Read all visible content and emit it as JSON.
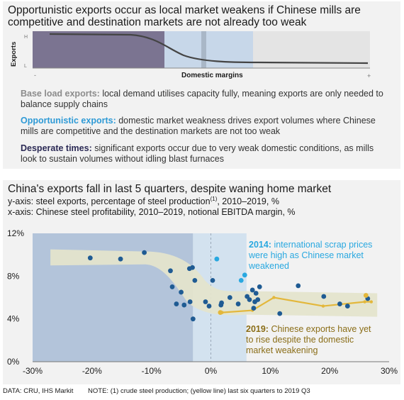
{
  "top_panel": {
    "title_line1": "Opportunistic exports occur as local market weakens if Chinese mills are",
    "title_line2": "competitive and destination markets are not already too weak",
    "schematic": {
      "y_axis_label": "Exports",
      "y_high": "H",
      "y_low": "L",
      "x_axis_label": "Domestic margins",
      "x_minus": "-",
      "x_plus": "+",
      "colors": {
        "desperate": "#7b7491",
        "opportunistic": "#c7d7e9",
        "base": "#e4e4e4",
        "line": "#444444"
      }
    },
    "definitions": [
      {
        "term": "Base load exports:",
        "text": " local demand utilises capacity fully, meaning exports are only needed to balance supply chains",
        "color": "#8c8c8c"
      },
      {
        "term": "Opportunistic exports:",
        "text": " domestic market weakness drives export volumes where Chinese mills are competitive and the destination markets are not too weak",
        "color": "#2e9ad6"
      },
      {
        "term": "Desperate times:",
        "text": " significant exports occur due to very weak domestic conditions, as mills look to sustain volumes without idling blast furnaces",
        "color": "#2b2a55"
      }
    ]
  },
  "bottom_panel": {
    "title": "China's exports fall in last 5 quarters, despite waning home market",
    "y_axis_desc": "y-axis: steel exports, percentage of steel production",
    "y_axis_sup": "(1)",
    "y_axis_desc_tail": ", 2010–2019, %",
    "x_axis_desc": "x-axis: Chinese steel profitability, 2010–2019, notional EBITDA margin, %"
  },
  "chart_data": {
    "type": "scatter",
    "xlim": [
      -30,
      30
    ],
    "ylim": [
      0,
      12
    ],
    "x_ticks": [
      "-30%",
      "-20%",
      "-10%",
      "0%",
      "10%",
      "20%",
      "30%"
    ],
    "y_ticks": [
      "0%",
      "4%",
      "8%",
      "12%"
    ],
    "x_tick_values": [
      -30,
      -20,
      -10,
      0,
      10,
      20,
      30
    ],
    "y_tick_values": [
      0,
      4,
      8,
      12
    ],
    "grid": false,
    "series": [
      {
        "color": "#1f5b93",
        "points": [
          [
            -20.3,
            9.7
          ],
          [
            -15.2,
            9.6
          ],
          [
            -11.2,
            10.2
          ],
          [
            -6.8,
            8.5
          ],
          [
            -6.5,
            7.0
          ],
          [
            -5.8,
            5.4
          ],
          [
            -5.0,
            6.5
          ],
          [
            -4.5,
            5.3
          ],
          [
            -3.6,
            8.7
          ],
          [
            -3.5,
            5.6
          ],
          [
            -3.1,
            8.8
          ],
          [
            -3.0,
            4.0
          ],
          [
            -2.7,
            7.6
          ],
          [
            -0.9,
            5.6
          ],
          [
            -0.3,
            5.2
          ],
          [
            0.3,
            7.6
          ],
          [
            1.7,
            5.3
          ],
          [
            1.8,
            5.5
          ],
          [
            4.6,
            5.4
          ],
          [
            6.1,
            6.1
          ],
          [
            6.5,
            5.8
          ],
          [
            7.0,
            6.7
          ],
          [
            7.2,
            5.0
          ],
          [
            7.4,
            5.6
          ],
          [
            7.6,
            6.4
          ],
          [
            7.9,
            5.8
          ],
          [
            8.2,
            7.0
          ],
          [
            11.6,
            4.5
          ],
          [
            14.7,
            7.1
          ],
          [
            19.0,
            6.1
          ],
          [
            21.7,
            5.4
          ],
          [
            23.0,
            5.2
          ],
          [
            26.4,
            5.9
          ],
          [
            3.2,
            6.0
          ]
        ]
      },
      {
        "color": "#29a8e0",
        "points": [
          [
            1.0,
            9.6
          ],
          [
            5.7,
            8.1
          ],
          [
            5.1,
            7.6
          ]
        ]
      },
      {
        "color": "#e3b73b",
        "line": true,
        "points": [
          [
            1.9,
            4.6
          ],
          [
            7.0,
            4.8
          ],
          [
            10.6,
            6.0
          ],
          [
            18.9,
            5.2
          ],
          [
            25.9,
            5.6
          ],
          [
            27.0,
            5.6
          ]
        ]
      },
      {
        "color": "#e3b73b",
        "points": [
          [
            26.1,
            6.2
          ],
          [
            1.6,
            4.6
          ]
        ]
      }
    ],
    "annotations": [
      {
        "bold": "2014:",
        "text": " international scrap prices were high as Chinese market weakened",
        "color": "#29a8e0"
      },
      {
        "bold": "2019:",
        "text": " Chinese exports have yet to rise despite the domestic market weakening",
        "color": "#8a6d17"
      }
    ],
    "colors": {
      "region_left": "#b3c4da",
      "region_mid": "#d3e2ef",
      "band": "#e4e4cc",
      "dashed_zero": "#9aa8b8"
    }
  },
  "footer": {
    "source": "DATA: CRU, IHS Markit",
    "note": "NOTE: (1) crude steel production; (yellow line) last six quarters to 2019 Q3"
  }
}
